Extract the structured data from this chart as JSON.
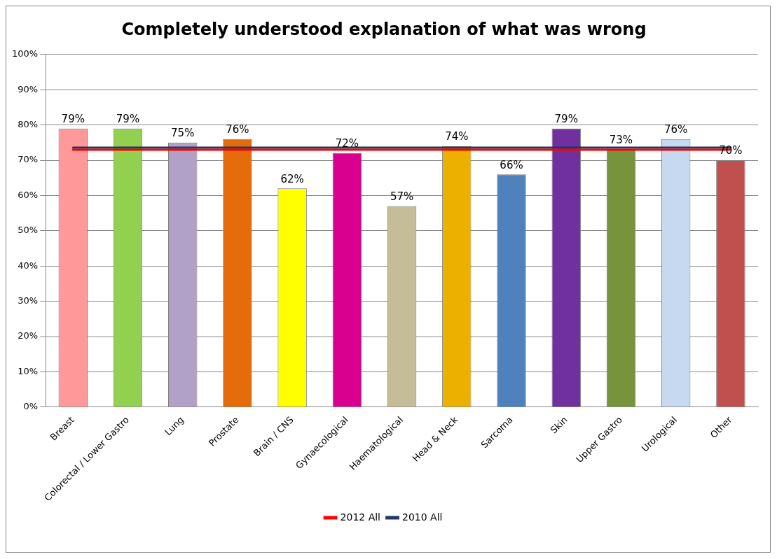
{
  "chart_data": {
    "type": "bar",
    "title": "Completely understood explanation of what was wrong",
    "categories": [
      "Breast",
      "Colorectal / Lower Gastro",
      "Lung",
      "Prostate",
      "Brain / CNS",
      "Gynaecological",
      "Haematological",
      "Head & Neck",
      "Sarcoma",
      "Skin",
      "Upper Gastro",
      "Urological",
      "Other"
    ],
    "series": [
      {
        "values": [
          79,
          79,
          75,
          76,
          62,
          72,
          57,
          74,
          66,
          79,
          73,
          76,
          70
        ],
        "colors": [
          "#ff9999",
          "#92d050",
          "#b1a0c7",
          "#e46c0a",
          "#ffff00",
          "#d9008f",
          "#c4bd97",
          "#ecb100",
          "#4f81bd",
          "#7030a0",
          "#77933c",
          "#c6d9f1",
          "#c0504d"
        ],
        "value_labels": [
          "79%",
          "79%",
          "75%",
          "76%",
          "62%",
          "72%",
          "57%",
          "74%",
          "66%",
          "79%",
          "73%",
          "76%",
          "70%"
        ]
      },
      {
        "type": "line",
        "name": "2012 All",
        "color": "#ff0000",
        "values": [
          73,
          73,
          73,
          73,
          73,
          73,
          73,
          73,
          73,
          73,
          73,
          73,
          73
        ]
      },
      {
        "type": "line",
        "name": "2010 All",
        "color": "#1f3864",
        "values": [
          73.6,
          73.6,
          73.6,
          73.6,
          73.6,
          73.6,
          73.6,
          73.6,
          73.6,
          73.6,
          73.6,
          73.6,
          73.6
        ]
      }
    ],
    "ylim": [
      0,
      100
    ],
    "yticks": [
      {
        "value": 0,
        "label": "0%"
      },
      {
        "value": 10,
        "label": "10%"
      },
      {
        "value": 20,
        "label": "20%"
      },
      {
        "value": 30,
        "label": "30%"
      },
      {
        "value": 40,
        "label": "40%"
      },
      {
        "value": 50,
        "label": "50%"
      },
      {
        "value": 60,
        "label": "60%"
      },
      {
        "value": 70,
        "label": "70%"
      },
      {
        "value": 80,
        "label": "80%"
      },
      {
        "value": 90,
        "label": "90%"
      },
      {
        "value": 100,
        "label": "100%"
      }
    ],
    "grid": "y",
    "legend": "bottom",
    "marker": "none",
    "line_style": "solid"
  }
}
